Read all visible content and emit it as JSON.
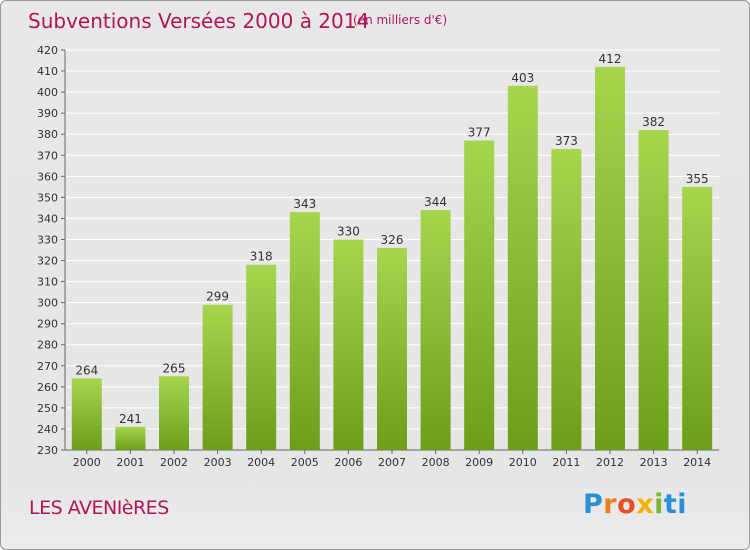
{
  "header": {
    "title": "Subventions Versées 2000 à 2014",
    "subtitle": "(en milliers d'€)"
  },
  "footer": {
    "commune": "LES AVENIèRES",
    "logo_text": "Proxiti"
  },
  "colors": {
    "bar_light": "#a6d64e",
    "bar_dark": "#6c9e1a",
    "title": "#b0155a",
    "grid": "#ffffff"
  },
  "chart_data": {
    "type": "bar",
    "title": "Subventions Versées 2000 à 2014",
    "subtitle": "(en milliers d'€)",
    "categories": [
      "2000",
      "2001",
      "2002",
      "2003",
      "2004",
      "2005",
      "2006",
      "2007",
      "2008",
      "2009",
      "2010",
      "2011",
      "2012",
      "2013",
      "2014"
    ],
    "values": [
      264,
      241,
      265,
      299,
      318,
      343,
      330,
      326,
      344,
      377,
      403,
      373,
      412,
      382,
      355
    ],
    "ylim": [
      230,
      420
    ],
    "ytick_step": 10,
    "grid": true,
    "data_labels": true
  }
}
